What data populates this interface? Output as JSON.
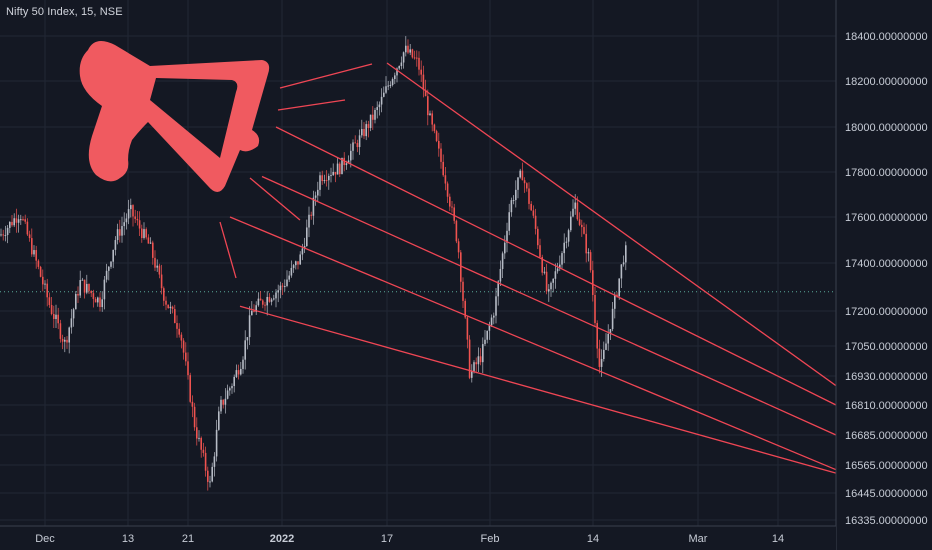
{
  "chart_data": {
    "type": "candlestick",
    "title": "Nifty 50 Index, 15, NSE",
    "colors": {
      "background": "#141823",
      "grid": "#222735",
      "up": "#b7bcc6",
      "down": "#ef5350",
      "trendline": "#ef4654",
      "logo": "#f05a60",
      "axis_text": "#c7ccd6",
      "axis_border": "#3a3f4c",
      "last_price_line": "#5aa79a"
    },
    "y_ticks": [
      "18400.00000000",
      "18200.00000000",
      "18000.00000000",
      "17800.00000000",
      "17600.00000000",
      "17400.00000000",
      "17200.00000000",
      "17050.00000000",
      "16930.00000000",
      "16810.00000000",
      "16685.00000000",
      "16565.00000000",
      "16445.00000000",
      "16335.00000000"
    ],
    "x_ticks": [
      "Dec",
      "13",
      "21",
      "2022",
      "17",
      "Feb",
      "14",
      "Mar",
      "14"
    ],
    "x_tick_bold": [
      false,
      false,
      false,
      true,
      false,
      false,
      false,
      false,
      false
    ],
    "last_price": 17280,
    "price_path": [
      [
        0,
        17520
      ],
      [
        20,
        17620
      ],
      [
        35,
        17420
      ],
      [
        50,
        17220
      ],
      [
        65,
        17060
      ],
      [
        80,
        17320
      ],
      [
        100,
        17240
      ],
      [
        115,
        17500
      ],
      [
        130,
        17630
      ],
      [
        150,
        17470
      ],
      [
        165,
        17250
      ],
      [
        180,
        17120
      ],
      [
        195,
        16720
      ],
      [
        210,
        16480
      ],
      [
        220,
        16800
      ],
      [
        232,
        16900
      ],
      [
        242,
        17000
      ],
      [
        252,
        17200
      ],
      [
        265,
        17250
      ],
      [
        282,
        17300
      ],
      [
        300,
        17420
      ],
      [
        320,
        17780
      ],
      [
        340,
        17820
      ],
      [
        360,
        17950
      ],
      [
        378,
        18080
      ],
      [
        390,
        18200
      ],
      [
        405,
        18340
      ],
      [
        418,
        18280
      ],
      [
        430,
        18030
      ],
      [
        445,
        17780
      ],
      [
        458,
        17480
      ],
      [
        470,
        16930
      ],
      [
        482,
        17020
      ],
      [
        495,
        17220
      ],
      [
        510,
        17650
      ],
      [
        522,
        17800
      ],
      [
        535,
        17560
      ],
      [
        548,
        17250
      ],
      [
        560,
        17420
      ],
      [
        575,
        17660
      ],
      [
        590,
        17400
      ],
      [
        600,
        16940
      ],
      [
        612,
        17180
      ],
      [
        625,
        17460
      ],
      [
        638,
        17270
      ],
      [
        650,
        17320
      ]
    ],
    "trendlines": [
      {
        "from": [
          "Jan 17",
          18280
        ],
        "to": [
          "Mar 23",
          16890
        ]
      },
      {
        "from": [
          "Dec 29",
          18000
        ],
        "to": [
          "Mar 23",
          16810
        ]
      },
      {
        "from": [
          "Dec 28",
          17780
        ],
        "to": [
          "Mar 23",
          16685
        ]
      },
      {
        "from": [
          "Dec 26",
          17600
        ],
        "to": [
          "Mar 23",
          16545
        ]
      },
      {
        "from": [
          "Dec 31",
          17220
        ],
        "to": [
          "Mar 23",
          16530
        ]
      }
    ]
  }
}
